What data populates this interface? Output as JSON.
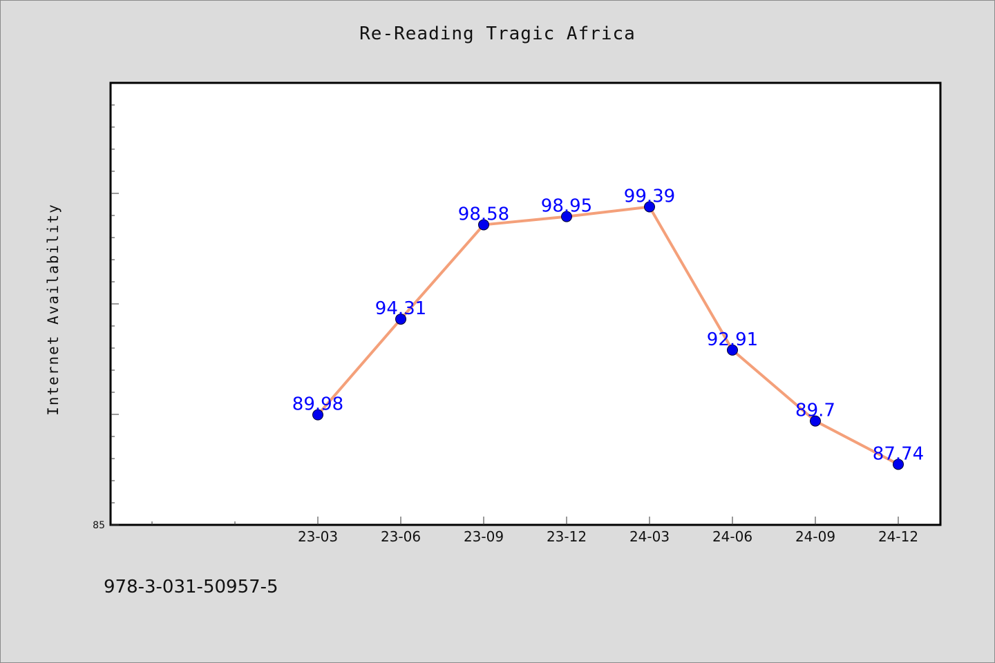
{
  "chart_data": {
    "type": "line",
    "title": "Re-Reading Tragic Africa",
    "xlabel": "",
    "ylabel": "Internet Availability",
    "categories": [
      "23-03",
      "23-06",
      "23-09",
      "23-12",
      "24-03",
      "24-06",
      "24-09",
      "24-12"
    ],
    "series": [
      {
        "values": [
          89.98,
          94.31,
          98.58,
          98.95,
          99.39,
          92.91,
          89.7,
          87.74
        ]
      }
    ],
    "data_labels": [
      "89.98",
      "94.31",
      "98.58",
      "98.95",
      "99.39",
      "92.91",
      "89.7",
      "87.74"
    ],
    "ylim": [
      85,
      105
    ],
    "ytick_labels": [
      "85"
    ],
    "grid": false,
    "colors": {
      "line": "#f4a07a",
      "marker": "#0000ee",
      "label": "#0000ff",
      "plot_bg": "#ffffff",
      "page_bg": "#dcdcdc"
    }
  },
  "footer": {
    "code": "978-3-031-50957-5"
  }
}
